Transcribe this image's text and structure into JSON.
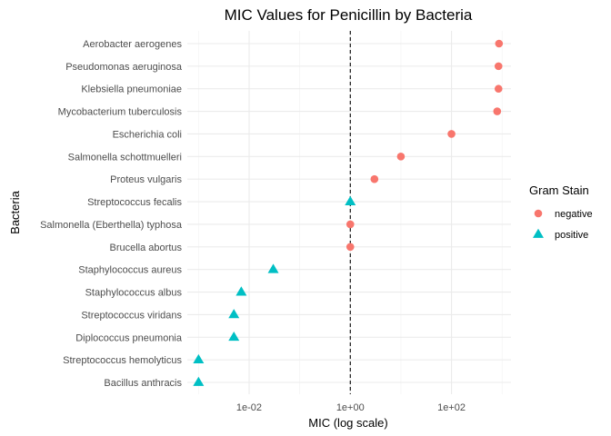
{
  "chart_data": {
    "type": "scatter",
    "title": "MIC Values for Penicillin by Bacteria",
    "xlabel": "MIC (log scale)",
    "ylabel": "Bacteria",
    "x_scale": "log10",
    "xlim": [
      0.0006,
      1500
    ],
    "x_ticks": [
      {
        "value": 0.01,
        "label": "1e-02"
      },
      {
        "value": 1,
        "label": "1e+00"
      },
      {
        "value": 100,
        "label": "1e+02"
      }
    ],
    "x_minor_ticks": [
      0.001,
      0.1,
      10,
      1000
    ],
    "reference_line": {
      "x": 1,
      "style": "dashed",
      "color": "#000000"
    },
    "grid": true,
    "legend": {
      "title": "Gram Stain",
      "placement": "right",
      "entries": [
        {
          "label": "negative",
          "color": "#F8766D",
          "shape": "circle"
        },
        {
          "label": "positive",
          "color": "#00BFC4",
          "shape": "triangle"
        }
      ]
    },
    "categories": [
      "Aerobacter aerogenes",
      "Pseudomonas aeruginosa",
      "Klebsiella pneumoniae",
      "Mycobacterium tuberculosis",
      "Escherichia coli",
      "Salmonella schottmuelleri",
      "Proteus vulgaris",
      "Streptococcus fecalis",
      "Salmonella (Eberthella) typhosa",
      "Brucella abortus",
      "Staphylococcus aureus",
      "Staphylococcus albus",
      "Streptococcus viridans",
      "Diplococcus pneumonia",
      "Streptococcus hemolyticus",
      "Bacillus anthracis"
    ],
    "points": [
      {
        "bacteria": "Aerobacter aerogenes",
        "mic": 870,
        "gram": "negative"
      },
      {
        "bacteria": "Pseudomonas aeruginosa",
        "mic": 850,
        "gram": "negative"
      },
      {
        "bacteria": "Klebsiella pneumoniae",
        "mic": 850,
        "gram": "negative"
      },
      {
        "bacteria": "Mycobacterium tuberculosis",
        "mic": 800,
        "gram": "negative"
      },
      {
        "bacteria": "Escherichia coli",
        "mic": 100,
        "gram": "negative"
      },
      {
        "bacteria": "Salmonella schottmuelleri",
        "mic": 10,
        "gram": "negative"
      },
      {
        "bacteria": "Proteus vulgaris",
        "mic": 3,
        "gram": "negative"
      },
      {
        "bacteria": "Streptococcus fecalis",
        "mic": 1,
        "gram": "positive"
      },
      {
        "bacteria": "Salmonella (Eberthella) typhosa",
        "mic": 1,
        "gram": "negative"
      },
      {
        "bacteria": "Brucella abortus",
        "mic": 1,
        "gram": "negative"
      },
      {
        "bacteria": "Staphylococcus aureus",
        "mic": 0.03,
        "gram": "positive"
      },
      {
        "bacteria": "Staphylococcus albus",
        "mic": 0.007,
        "gram": "positive"
      },
      {
        "bacteria": "Streptococcus viridans",
        "mic": 0.005,
        "gram": "positive"
      },
      {
        "bacteria": "Diplococcus pneumonia",
        "mic": 0.005,
        "gram": "positive"
      },
      {
        "bacteria": "Streptococcus hemolyticus",
        "mic": 0.001,
        "gram": "positive"
      },
      {
        "bacteria": "Bacillus anthracis",
        "mic": 0.001,
        "gram": "positive"
      }
    ]
  }
}
